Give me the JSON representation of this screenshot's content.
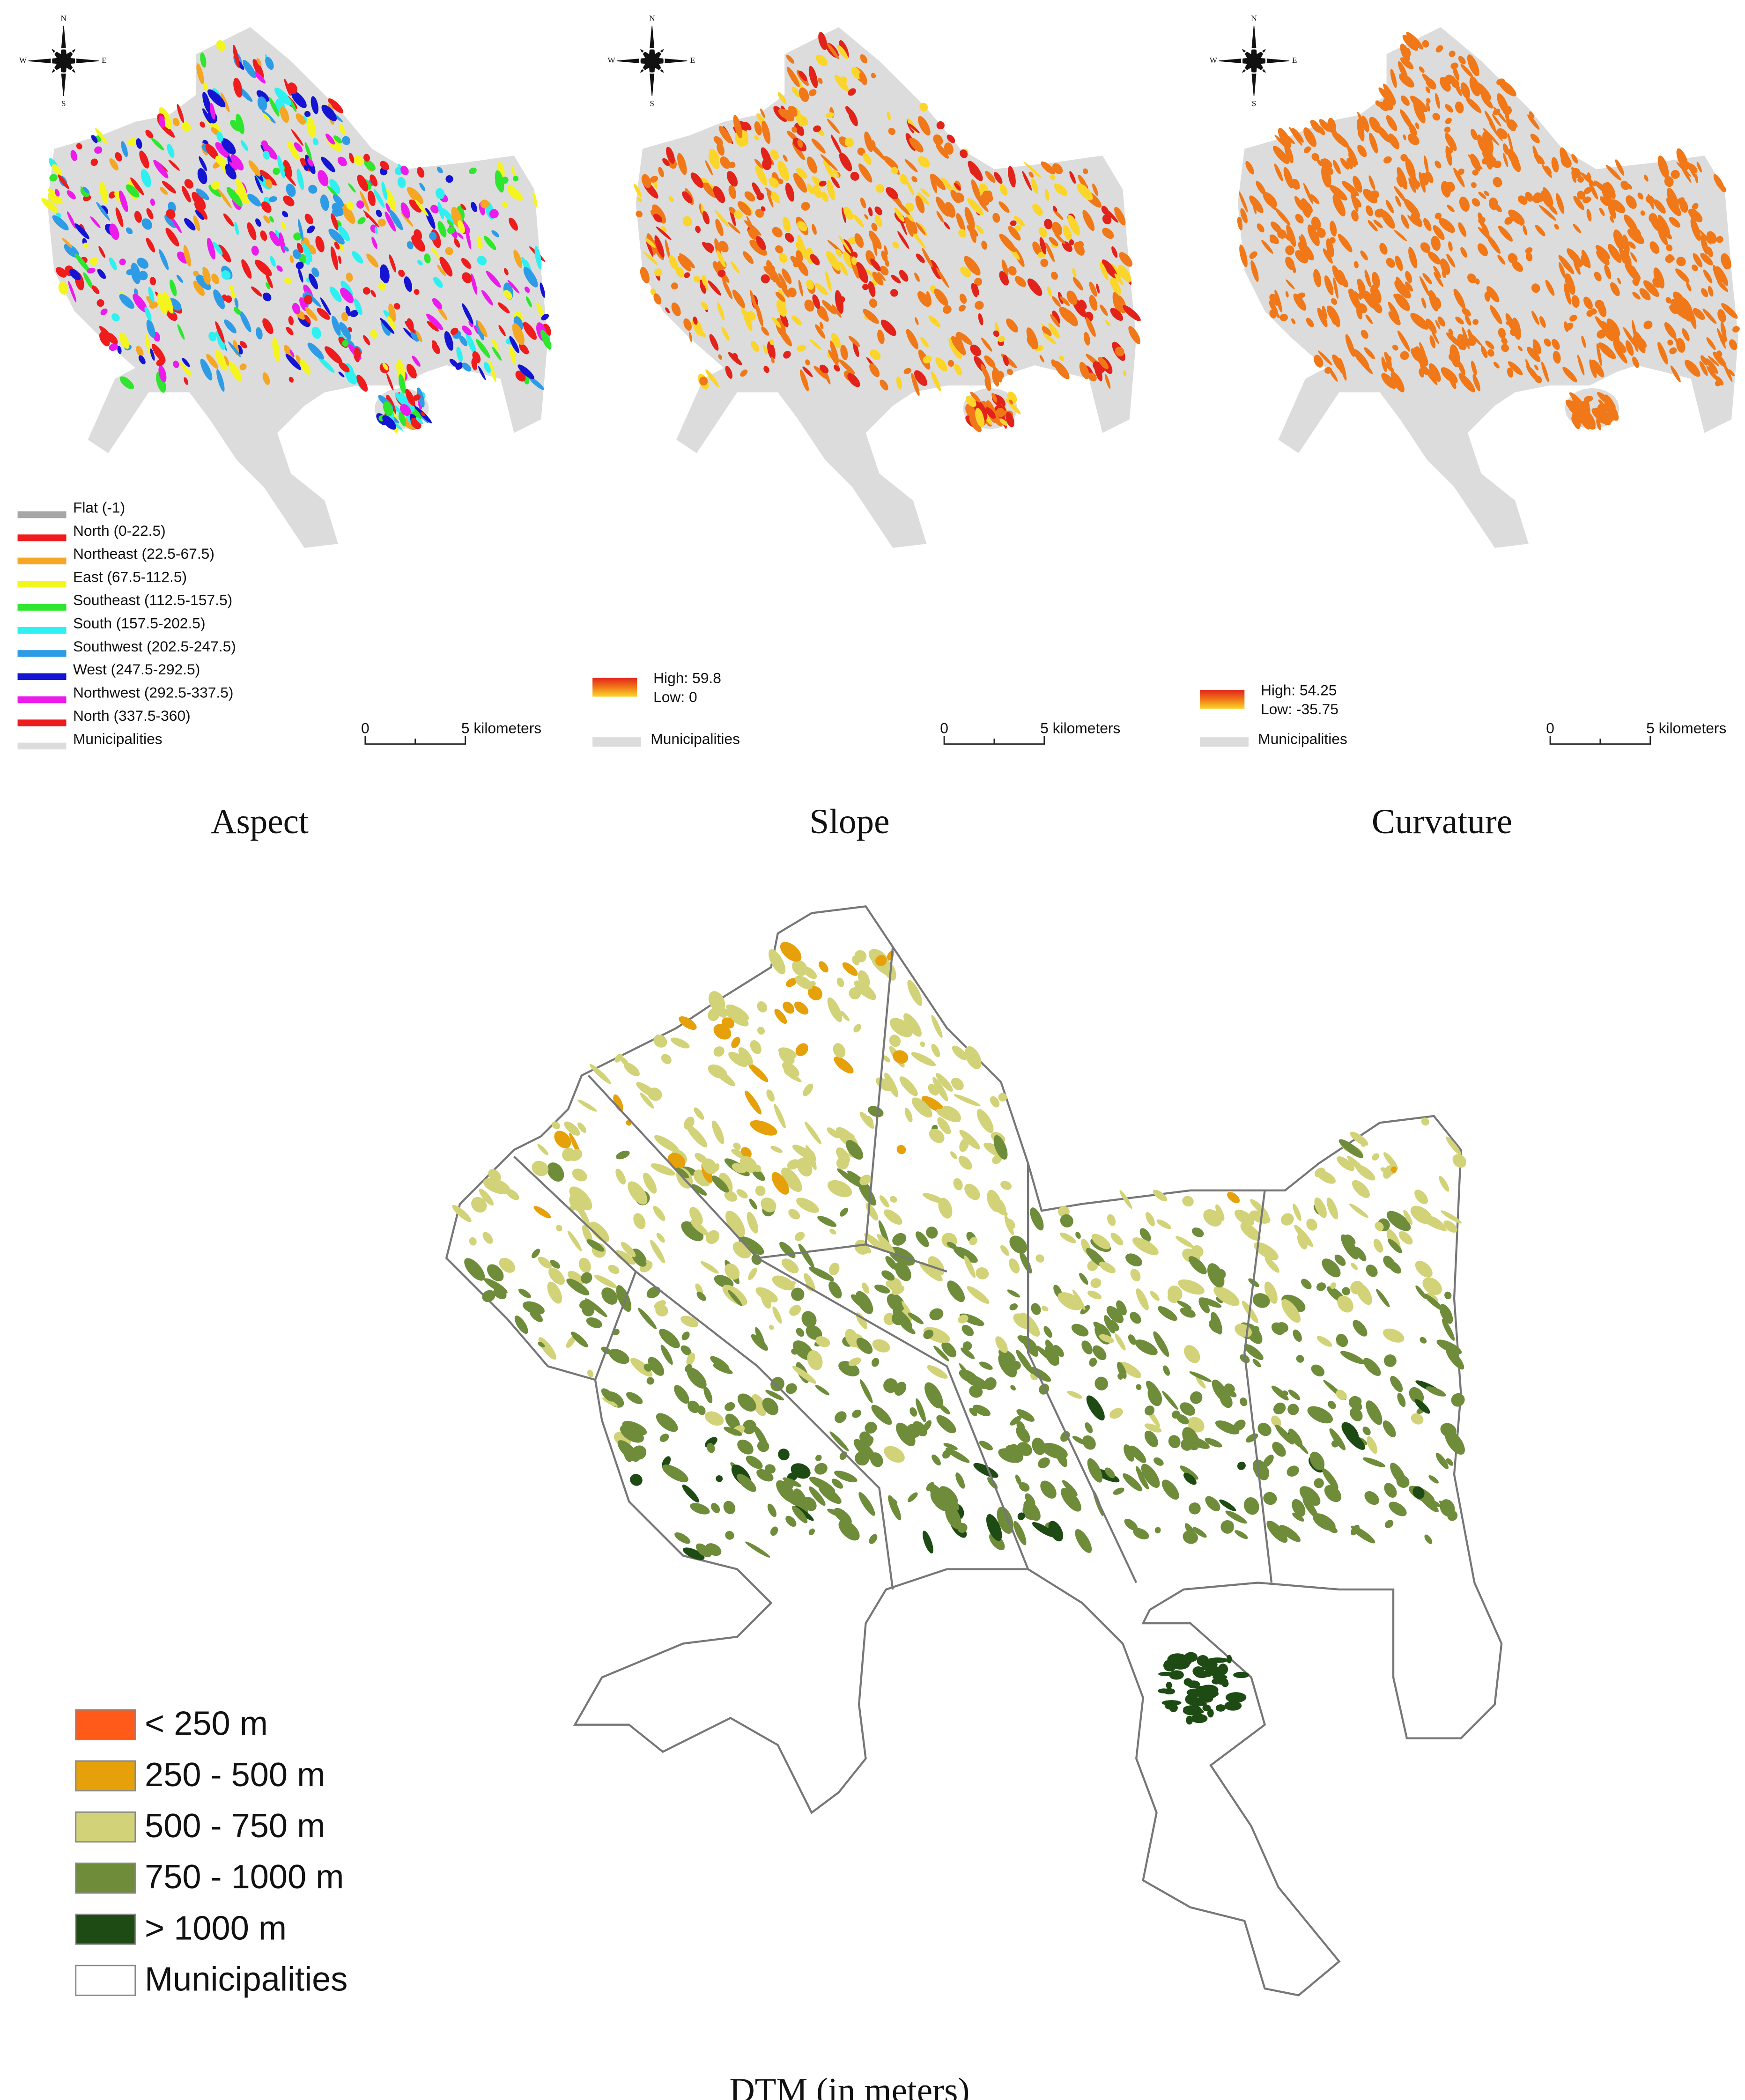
{
  "compass": {
    "N": "N",
    "S": "S",
    "E": "E",
    "W": "W"
  },
  "panels": [
    {
      "title": "Aspect",
      "legend": [
        {
          "label": "Flat (-1)",
          "color": "#a6a6a6"
        },
        {
          "label": "North (0-22.5)",
          "color": "#ee1c1c"
        },
        {
          "label": "Northeast (22.5-67.5)",
          "color": "#f5a623"
        },
        {
          "label": "East (67.5-112.5)",
          "color": "#f5f51e"
        },
        {
          "label": "Southeast (112.5-157.5)",
          "color": "#2ee62e"
        },
        {
          "label": "South (157.5-202.5)",
          "color": "#2ef0f0"
        },
        {
          "label": "Southwest (202.5-247.5)",
          "color": "#2e9be6"
        },
        {
          "label": "West (247.5-292.5)",
          "color": "#1414d2"
        },
        {
          "label": "Northwest (292.5-337.5)",
          "color": "#eb1ceb"
        },
        {
          "label": "North (337.5-360)",
          "color": "#ee1c1c"
        },
        {
          "label": "Municipalities",
          "color": "#dcdcdc"
        }
      ],
      "scale": [
        "0",
        "5 kilometers"
      ]
    },
    {
      "title": "Slope",
      "legend": [
        {
          "label": "High: 59.8",
          "color": "#e2231a"
        },
        {
          "label": "Low: 0",
          "color": "#fbd52a"
        },
        {
          "label": "Municipalities",
          "color": "#dcdcdc"
        }
      ],
      "scale": [
        "0",
        "5 kilometers"
      ]
    },
    {
      "title": "Curvature",
      "legend": [
        {
          "label": "High: 54.25",
          "color": "#e2231a"
        },
        {
          "label": "Low: -35.75",
          "color": "#fbd52a"
        },
        {
          "label": "Municipalities",
          "color": "#dcdcdc"
        }
      ],
      "scale": [
        "0",
        "5 kilometers"
      ]
    },
    {
      "title": "DTM (in meters)",
      "legend": [
        {
          "label": "< 250 m",
          "color": "#ff5a1a"
        },
        {
          "label": "250 - 500 m",
          "color": "#e6a00a"
        },
        {
          "label": "500 - 750 m",
          "color": "#d2d278"
        },
        {
          "label": "750  - 1000 m",
          "color": "#6e8c3a"
        },
        {
          "label": "> 1000 m",
          "color": "#1e4a14"
        },
        {
          "label": "Municipalities",
          "color": "#ffffff"
        }
      ]
    }
  ]
}
